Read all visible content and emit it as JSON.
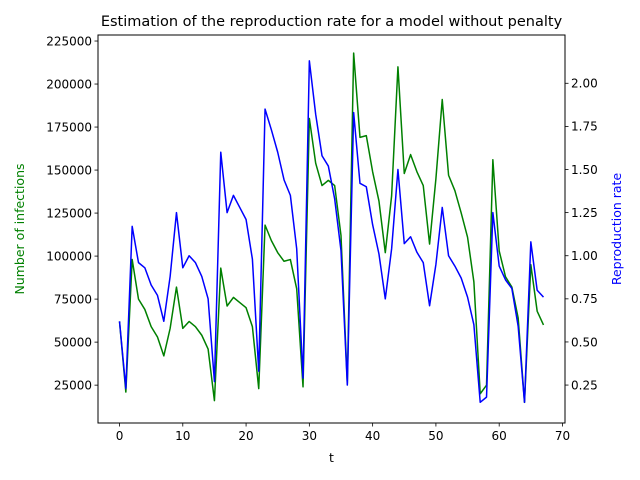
{
  "chart_data": {
    "type": "line",
    "title": "Estimation of the reproduction rate for a model without penalty",
    "xlabel": "t",
    "ylabel_left": "Number of infections",
    "ylabel_right": "Reproduction rate",
    "xlim": [
      -3.4,
      70.4
    ],
    "ylim_left": [
      3000,
      228500
    ],
    "ylim_right": [
      0.03,
      2.28
    ],
    "x_ticks": [
      0,
      10,
      20,
      30,
      40,
      50,
      60,
      70
    ],
    "y_ticks_left": [
      25000,
      50000,
      75000,
      100000,
      125000,
      150000,
      175000,
      200000,
      225000
    ],
    "y_ticks_right": [
      0.25,
      0.5,
      0.75,
      1.0,
      1.25,
      1.5,
      1.75,
      2.0
    ],
    "y_tick_labels_left": [
      "25000",
      "50000",
      "75000",
      "100000",
      "125000",
      "150000",
      "175000",
      "200000",
      "225000"
    ],
    "y_tick_labels_right": [
      "0.25",
      "0.50",
      "0.75",
      "1.00",
      "1.25",
      "1.50",
      "1.75",
      "2.00"
    ],
    "grid": false,
    "legend": "none",
    "series": [
      {
        "axis": "left",
        "color": "#008000",
        "x": [
          0,
          1,
          2,
          3,
          4,
          5,
          6,
          7,
          8,
          9,
          10,
          11,
          12,
          13,
          14,
          15,
          16,
          17,
          18,
          19,
          20,
          21,
          22,
          23,
          24,
          25,
          26,
          27,
          28,
          29,
          30,
          31,
          32,
          33,
          34,
          35,
          36,
          37,
          38,
          39,
          40,
          41,
          42,
          43,
          44,
          45,
          46,
          47,
          48,
          49,
          50,
          51,
          52,
          53,
          54,
          55,
          56,
          57,
          58,
          59,
          60,
          61,
          62,
          63,
          64,
          65,
          66,
          67
        ],
        "values": [
          62000,
          21000,
          98000,
          75000,
          69000,
          59000,
          53000,
          42000,
          58000,
          82000,
          58000,
          62000,
          59000,
          54000,
          46000,
          16000,
          93000,
          71000,
          76000,
          73000,
          70000,
          59000,
          23000,
          118000,
          109000,
          102000,
          97000,
          98000,
          81000,
          24000,
          180000,
          154000,
          141000,
          144000,
          141000,
          112000,
          26000,
          218000,
          169000,
          170000,
          149000,
          132000,
          102000,
          135000,
          210000,
          148000,
          159000,
          149000,
          141000,
          107000,
          145000,
          191000,
          147000,
          138000,
          125000,
          111000,
          85000,
          20000,
          25000,
          156000,
          103000,
          88000,
          82000,
          64000,
          15000,
          95000,
          68000,
          60000
        ]
      },
      {
        "axis": "right",
        "color": "#0000ff",
        "x": [
          0,
          1,
          2,
          3,
          4,
          5,
          6,
          7,
          8,
          9,
          10,
          11,
          12,
          13,
          14,
          15,
          16,
          17,
          18,
          19,
          20,
          21,
          22,
          23,
          24,
          25,
          26,
          27,
          28,
          29,
          30,
          31,
          32,
          33,
          34,
          35,
          36,
          37,
          38,
          39,
          40,
          41,
          42,
          43,
          44,
          45,
          46,
          47,
          48,
          49,
          50,
          51,
          52,
          53,
          54,
          55,
          56,
          57,
          58,
          59,
          60,
          61,
          62,
          63,
          64,
          65,
          66,
          67
        ],
        "values": [
          0.62,
          0.23,
          1.17,
          0.96,
          0.93,
          0.83,
          0.77,
          0.62,
          0.88,
          1.25,
          0.93,
          1.0,
          0.96,
          0.88,
          0.75,
          0.27,
          1.6,
          1.25,
          1.35,
          1.28,
          1.21,
          0.98,
          0.33,
          1.85,
          1.73,
          1.6,
          1.44,
          1.35,
          1.04,
          0.29,
          2.13,
          1.82,
          1.58,
          1.52,
          1.33,
          1.03,
          0.25,
          1.83,
          1.42,
          1.4,
          1.18,
          1.01,
          0.75,
          1.04,
          1.5,
          1.07,
          1.11,
          1.02,
          0.96,
          0.71,
          0.95,
          1.28,
          1.0,
          0.94,
          0.87,
          0.76,
          0.6,
          0.15,
          0.18,
          1.25,
          0.94,
          0.86,
          0.81,
          0.59,
          0.15,
          1.08,
          0.8,
          0.76
        ]
      }
    ]
  }
}
